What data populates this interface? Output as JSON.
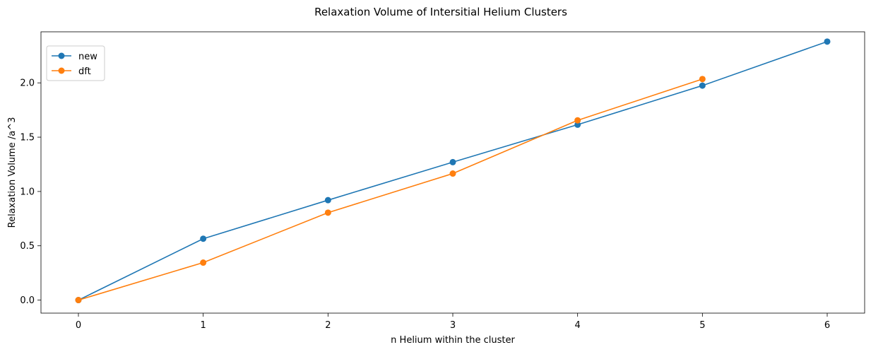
{
  "chart_data": {
    "type": "line",
    "title": "Relaxation Volume of Intersitial Helium Clusters",
    "xlabel": "n Helium within the cluster",
    "ylabel": "Relaxation Volume /a^3",
    "xlim": [
      -0.3,
      6.3
    ],
    "ylim": [
      -0.12,
      2.47
    ],
    "x_ticks": [
      0,
      1,
      2,
      3,
      4,
      5,
      6
    ],
    "y_ticks": [
      0.0,
      0.5,
      1.0,
      1.5,
      2.0
    ],
    "x_tick_labels": [
      "0",
      "1",
      "2",
      "3",
      "4",
      "5",
      "6"
    ],
    "y_tick_labels": [
      "0.0",
      "0.5",
      "1.0",
      "1.5",
      "2.0"
    ],
    "grid": false,
    "legend_position": "top-left",
    "series": [
      {
        "name": "new",
        "color": "#1f77b4",
        "marker": "circle",
        "x": [
          0,
          1,
          2,
          3,
          4,
          5,
          6
        ],
        "y": [
          0.0,
          0.565,
          0.92,
          1.27,
          1.615,
          1.975,
          2.38
        ]
      },
      {
        "name": "dft",
        "color": "#ff7f0e",
        "marker": "circle",
        "x": [
          0,
          1,
          2,
          3,
          4,
          5
        ],
        "y": [
          0.0,
          0.345,
          0.805,
          1.165,
          1.655,
          2.035
        ]
      }
    ]
  }
}
